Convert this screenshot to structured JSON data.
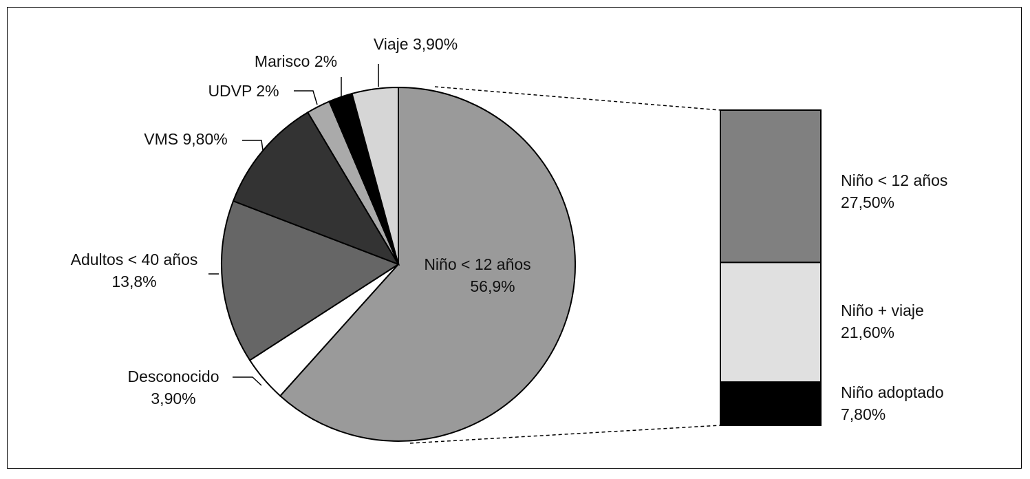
{
  "chart_data": [
    {
      "type": "pie",
      "title": "",
      "slices": [
        {
          "label": "Niño < 12 años",
          "value_label": "56,9%",
          "value": 56.9,
          "color": "#9a9a9a"
        },
        {
          "label": "Desconocido",
          "value_label": "3,90%",
          "value": 3.9,
          "color": "#ffffff"
        },
        {
          "label": "Adultos < 40 años",
          "value_label": "13,8%",
          "value": 13.8,
          "color": "#666666"
        },
        {
          "label": "VMS",
          "value_label": "9,80%",
          "value": 9.8,
          "color": "#333333"
        },
        {
          "label": "UDVP",
          "value_label": "2%",
          "value": 2.0,
          "color": "#aaaaaa"
        },
        {
          "label": "Marisco",
          "value_label": "2%",
          "value": 2.0,
          "color": "#000000"
        },
        {
          "label": "Viaje",
          "value_label": "3,90%",
          "value": 3.9,
          "color": "#d6d6d6"
        }
      ]
    },
    {
      "type": "bar",
      "stacked": true,
      "breakdown_of": "Niño < 12 años",
      "segments": [
        {
          "label": "Niño < 12 años",
          "value_label": "27,50%",
          "value": 27.5,
          "color": "#808080"
        },
        {
          "label": "Niño + viaje",
          "value_label": "21,60%",
          "value": 21.6,
          "color": "#e0e0e0"
        },
        {
          "label": "Niño adoptado",
          "value_label": "7,80%",
          "value": 7.8,
          "color": "#000000"
        }
      ]
    }
  ]
}
